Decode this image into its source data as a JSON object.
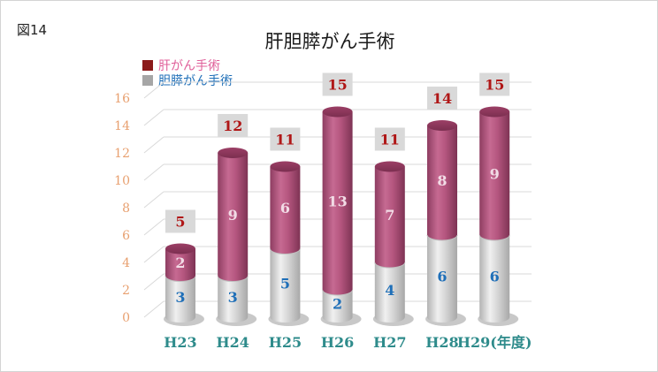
{
  "figure_label": "図14",
  "chart_data": {
    "type": "bar",
    "stacked": true,
    "title": "肝胆膵がん手術",
    "categories": [
      "H23",
      "H24",
      "H25",
      "H26",
      "H27",
      "H28",
      "H29(年度)"
    ],
    "series": [
      {
        "name": "胆膵がん手術",
        "values": [
          3,
          3,
          5,
          2,
          4,
          6,
          6
        ],
        "color": "#c8c8c8",
        "label_color": "#1f6fb8"
      },
      {
        "name": "肝がん手術",
        "values": [
          2,
          9,
          6,
          13,
          7,
          8,
          9
        ],
        "color": "#b5567f",
        "label_color": "#f2dce6"
      }
    ],
    "totals": [
      5,
      12,
      11,
      15,
      11,
      14,
      15
    ],
    "total_label_color": "#b01717",
    "total_box_color": "#d9d9d9",
    "legend": [
      {
        "label": "肝がん手術",
        "swatch": "#8b1a1a",
        "text_color": "#e0609a"
      },
      {
        "label": "胆膵がん手術",
        "swatch": "#a6a6a6",
        "text_color": "#1f6fb8"
      }
    ],
    "yticks": [
      0,
      2,
      4,
      6,
      8,
      10,
      12,
      14,
      16
    ],
    "ylim": [
      0,
      16
    ],
    "tick_color": "#e8a070",
    "xlabel_color": "#2e8b8b",
    "grid": true,
    "legend_position": "top-left"
  }
}
